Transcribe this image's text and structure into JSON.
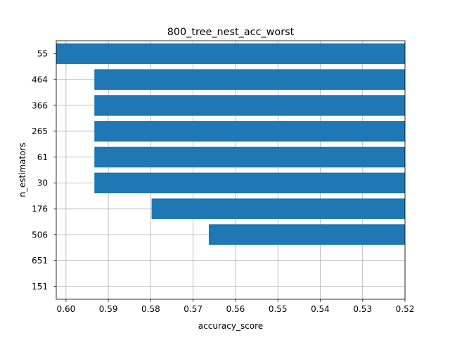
{
  "chart_data": {
    "type": "bar",
    "orientation": "horizontal",
    "title": "800_tree_nest_acc_worst",
    "xlabel": "accuracy_score",
    "ylabel": "n_estimators",
    "x_axis_inverted": true,
    "xlim": [
      0.6023,
      0.52
    ],
    "xticks": [
      0.6,
      0.59,
      0.58,
      0.57,
      0.56,
      0.55,
      0.54,
      0.53,
      0.52
    ],
    "xtick_labels": [
      "0.60",
      "0.59",
      "0.58",
      "0.57",
      "0.56",
      "0.55",
      "0.54",
      "0.53",
      "0.52"
    ],
    "grid": true,
    "categories": [
      "55",
      "464",
      "366",
      "265",
      "61",
      "30",
      "176",
      "506",
      "651",
      "151"
    ],
    "values": [
      0.6023,
      0.5933,
      0.5933,
      0.5933,
      0.5933,
      0.5933,
      0.5798,
      0.5663,
      0.52,
      0.52
    ],
    "colors": {
      "bar": "#1f77b4",
      "grid": "#b0b0b0",
      "axis": "#000000"
    }
  }
}
